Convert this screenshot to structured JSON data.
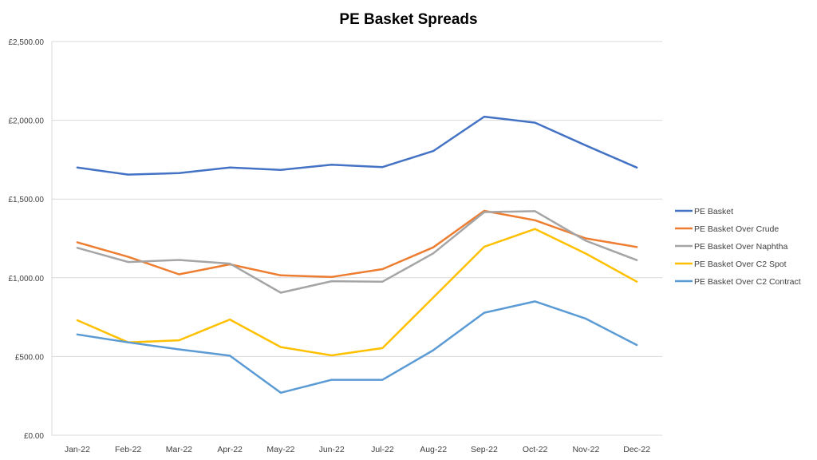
{
  "chart_data": {
    "type": "line",
    "title": "PE Basket Spreads",
    "xlabel": "",
    "ylabel": "",
    "categories": [
      "Jan-22",
      "Feb-22",
      "Mar-22",
      "Apr-22",
      "May-22",
      "Jun-22",
      "Jul-22",
      "Aug-22",
      "Sep-22",
      "Oct-22",
      "Nov-22",
      "Dec-22"
    ],
    "ylim": [
      0,
      2500
    ],
    "yticks": [
      0,
      500,
      1000,
      1500,
      2000,
      2500
    ],
    "ytick_labels": [
      "£0.00",
      "£500.00",
      "£1,000.00",
      "£1,500.00",
      "£2,000.00",
      "£2,500.00"
    ],
    "grid": true,
    "legend_position": "right",
    "series": [
      {
        "name": "PE Basket",
        "color": "#4472C4",
        "values": [
          1700,
          1655,
          1665,
          1700,
          1685,
          1718,
          1703,
          1805,
          2023,
          1985,
          1840,
          1700
        ]
      },
      {
        "name": "PE Basket Over Crude",
        "color": "#ED7D31",
        "values": [
          1225,
          1133,
          1022,
          1085,
          1015,
          1005,
          1055,
          1193,
          1425,
          1365,
          1250,
          1195
        ]
      },
      {
        "name": "PE Basket Over Naphtha",
        "color": "#A5A5A5",
        "values": [
          1190,
          1100,
          1113,
          1090,
          905,
          978,
          975,
          1155,
          1417,
          1423,
          1235,
          1112
        ]
      },
      {
        "name": "PE Basket Over C2 Spot",
        "color": "#FFC000",
        "values": [
          730,
          590,
          603,
          735,
          560,
          507,
          553,
          875,
          1197,
          1310,
          1153,
          975
        ]
      },
      {
        "name": "PE Basket Over C2 Contract",
        "color": "#5B9BD5",
        "values": [
          640,
          590,
          545,
          505,
          270,
          352,
          352,
          540,
          778,
          850,
          740,
          573
        ]
      }
    ]
  }
}
